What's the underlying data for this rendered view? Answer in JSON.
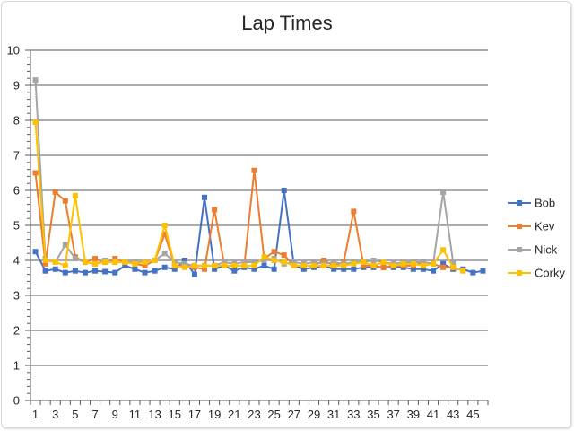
{
  "chart_data": {
    "type": "line",
    "title": "Lap Times",
    "xlabel": "",
    "ylabel": "",
    "ylim": [
      0,
      10
    ],
    "yticks": [
      0,
      1,
      2,
      3,
      4,
      5,
      6,
      7,
      8,
      9,
      10
    ],
    "xlim": [
      1,
      46
    ],
    "xticks": [
      1,
      3,
      5,
      7,
      9,
      11,
      13,
      15,
      17,
      19,
      21,
      23,
      25,
      27,
      29,
      31,
      33,
      35,
      37,
      39,
      41,
      43,
      45
    ],
    "grid": "horizontal",
    "legend_position": "right",
    "series": [
      {
        "name": "Bob",
        "color": "#4472C4",
        "marker": "square",
        "x": [
          1,
          2,
          3,
          4,
          5,
          6,
          7,
          8,
          9,
          10,
          11,
          12,
          13,
          14,
          15,
          16,
          17,
          18,
          19,
          20,
          21,
          22,
          23,
          24,
          25,
          26,
          27,
          28,
          29,
          30,
          31,
          32,
          33,
          34,
          35,
          36,
          37,
          38,
          39,
          40,
          41,
          42,
          43,
          44,
          45,
          46
        ],
        "values": [
          4.25,
          3.7,
          3.75,
          3.65,
          3.7,
          3.65,
          3.7,
          3.68,
          3.65,
          3.85,
          3.75,
          3.65,
          3.7,
          3.8,
          3.75,
          4.0,
          3.6,
          5.8,
          3.75,
          3.85,
          3.7,
          3.8,
          3.75,
          3.85,
          3.75,
          6.0,
          3.85,
          3.75,
          3.8,
          3.85,
          3.75,
          3.75,
          3.75,
          3.8,
          3.8,
          3.8,
          3.8,
          3.8,
          3.75,
          3.75,
          3.7,
          3.9,
          3.75,
          3.75,
          3.65,
          3.7
        ]
      },
      {
        "name": "Kev",
        "color": "#ED7D31",
        "marker": "square",
        "x": [
          1,
          2,
          3,
          4,
          5,
          6,
          7,
          8,
          9,
          10,
          11,
          12,
          13,
          14,
          15,
          16,
          17,
          18,
          19,
          20,
          21,
          22,
          23,
          24,
          25,
          26,
          27,
          28,
          29,
          30,
          31,
          32,
          33,
          34,
          35,
          36,
          37,
          38,
          39,
          40,
          41,
          42,
          43
        ],
        "values": [
          6.5,
          3.9,
          5.95,
          5.7,
          4.1,
          3.95,
          4.05,
          3.95,
          4.05,
          3.95,
          3.9,
          3.85,
          4.0,
          4.75,
          3.85,
          3.85,
          3.8,
          3.75,
          5.45,
          3.85,
          3.85,
          3.85,
          6.57,
          4.05,
          4.25,
          4.15,
          3.85,
          3.85,
          3.85,
          4.0,
          3.85,
          3.95,
          5.4,
          3.85,
          3.85,
          3.8,
          3.85,
          3.85,
          3.85,
          3.95,
          3.9,
          3.8,
          3.8
        ]
      },
      {
        "name": "Nick",
        "color": "#A5A5A5",
        "marker": "square",
        "x": [
          1,
          2,
          3,
          4,
          5,
          6,
          7,
          8,
          9,
          10,
          11,
          12,
          13,
          14,
          15,
          16,
          17,
          18,
          19,
          20,
          21,
          22,
          23,
          24,
          25,
          26,
          27,
          28,
          29,
          30,
          31,
          32,
          33,
          34,
          35,
          36,
          37,
          38,
          39,
          40,
          41,
          42,
          43
        ],
        "values": [
          9.15,
          4.05,
          3.95,
          4.45,
          4.05,
          3.95,
          3.9,
          4.0,
          3.95,
          3.95,
          3.95,
          3.95,
          4.0,
          4.2,
          3.95,
          3.9,
          3.85,
          3.85,
          3.85,
          3.95,
          3.9,
          3.95,
          3.95,
          4.0,
          4.05,
          3.9,
          3.95,
          3.9,
          3.95,
          3.9,
          3.95,
          3.9,
          3.95,
          3.95,
          4.0,
          3.95,
          3.9,
          3.95,
          3.95,
          3.95,
          3.9,
          5.95,
          3.95
        ]
      },
      {
        "name": "Corky",
        "color": "#FFC000",
        "marker": "square",
        "x": [
          1,
          2,
          3,
          4,
          5,
          6,
          7,
          8,
          9,
          10,
          11,
          12,
          13,
          14,
          15,
          16,
          17,
          18,
          19,
          20,
          21,
          22,
          23,
          24,
          25,
          26,
          27,
          28,
          29,
          30,
          31,
          32,
          33,
          34,
          35,
          36,
          37,
          38,
          39,
          40,
          41,
          42,
          43,
          44
        ],
        "values": [
          7.95,
          4.0,
          3.95,
          3.85,
          5.85,
          3.95,
          3.9,
          3.95,
          3.95,
          3.95,
          3.9,
          3.95,
          4.0,
          5.0,
          3.85,
          3.8,
          3.85,
          3.85,
          3.85,
          3.85,
          3.85,
          3.85,
          3.85,
          4.1,
          4.0,
          3.95,
          3.85,
          3.85,
          3.85,
          3.85,
          3.85,
          3.85,
          3.9,
          3.95,
          3.85,
          3.95,
          3.85,
          3.9,
          3.9,
          3.85,
          3.9,
          4.3,
          3.8,
          3.7
        ]
      }
    ]
  }
}
